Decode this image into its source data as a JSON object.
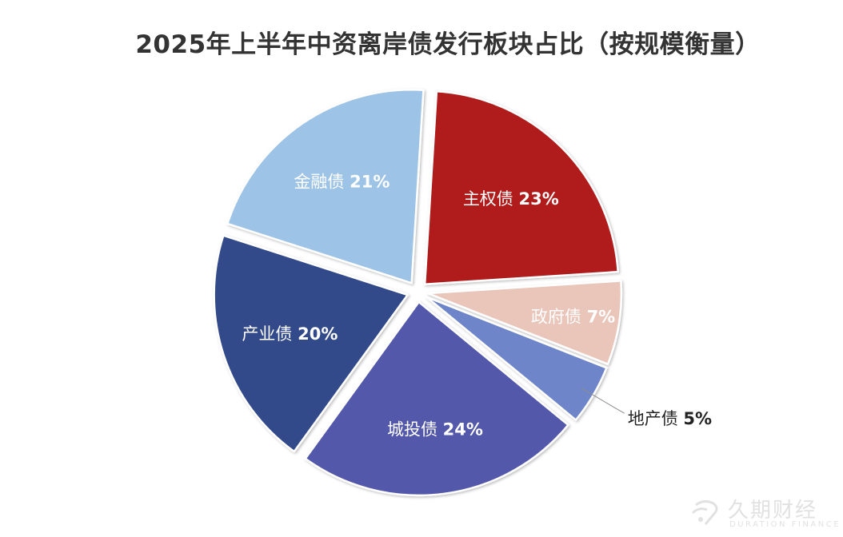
{
  "chart_data": {
    "type": "pie",
    "title": "2025年上半年中资离岸债发行板块占比（按规模衡量）",
    "unit": "%",
    "slices": [
      {
        "name": "主权债",
        "value": 23,
        "label": "23%",
        "color": "#B01C1F",
        "label_color": "#ffffff"
      },
      {
        "name": "政府债",
        "value": 7,
        "label": "7%",
        "color": "#EAC5B9",
        "label_color": "#ffffff"
      },
      {
        "name": "地产债",
        "value": 5,
        "label": "5%",
        "color": "#6E86C9",
        "label_color": "#222222"
      },
      {
        "name": "城投债",
        "value": 24,
        "label": "24%",
        "color": "#5358AB",
        "label_color": "#ffffff"
      },
      {
        "name": "产业债",
        "value": 20,
        "label": "20%",
        "color": "#334A8A",
        "label_color": "#ffffff"
      },
      {
        "name": "金融债",
        "value": 21,
        "label": "21%",
        "color": "#9DC3E6",
        "label_color": "#ffffff"
      }
    ]
  },
  "watermark": {
    "text_cn": "久期财经",
    "text_en": "DURATION FINANCE",
    "logo_icon": "duration-finance-logo-icon",
    "color": "#c9c9c9"
  }
}
